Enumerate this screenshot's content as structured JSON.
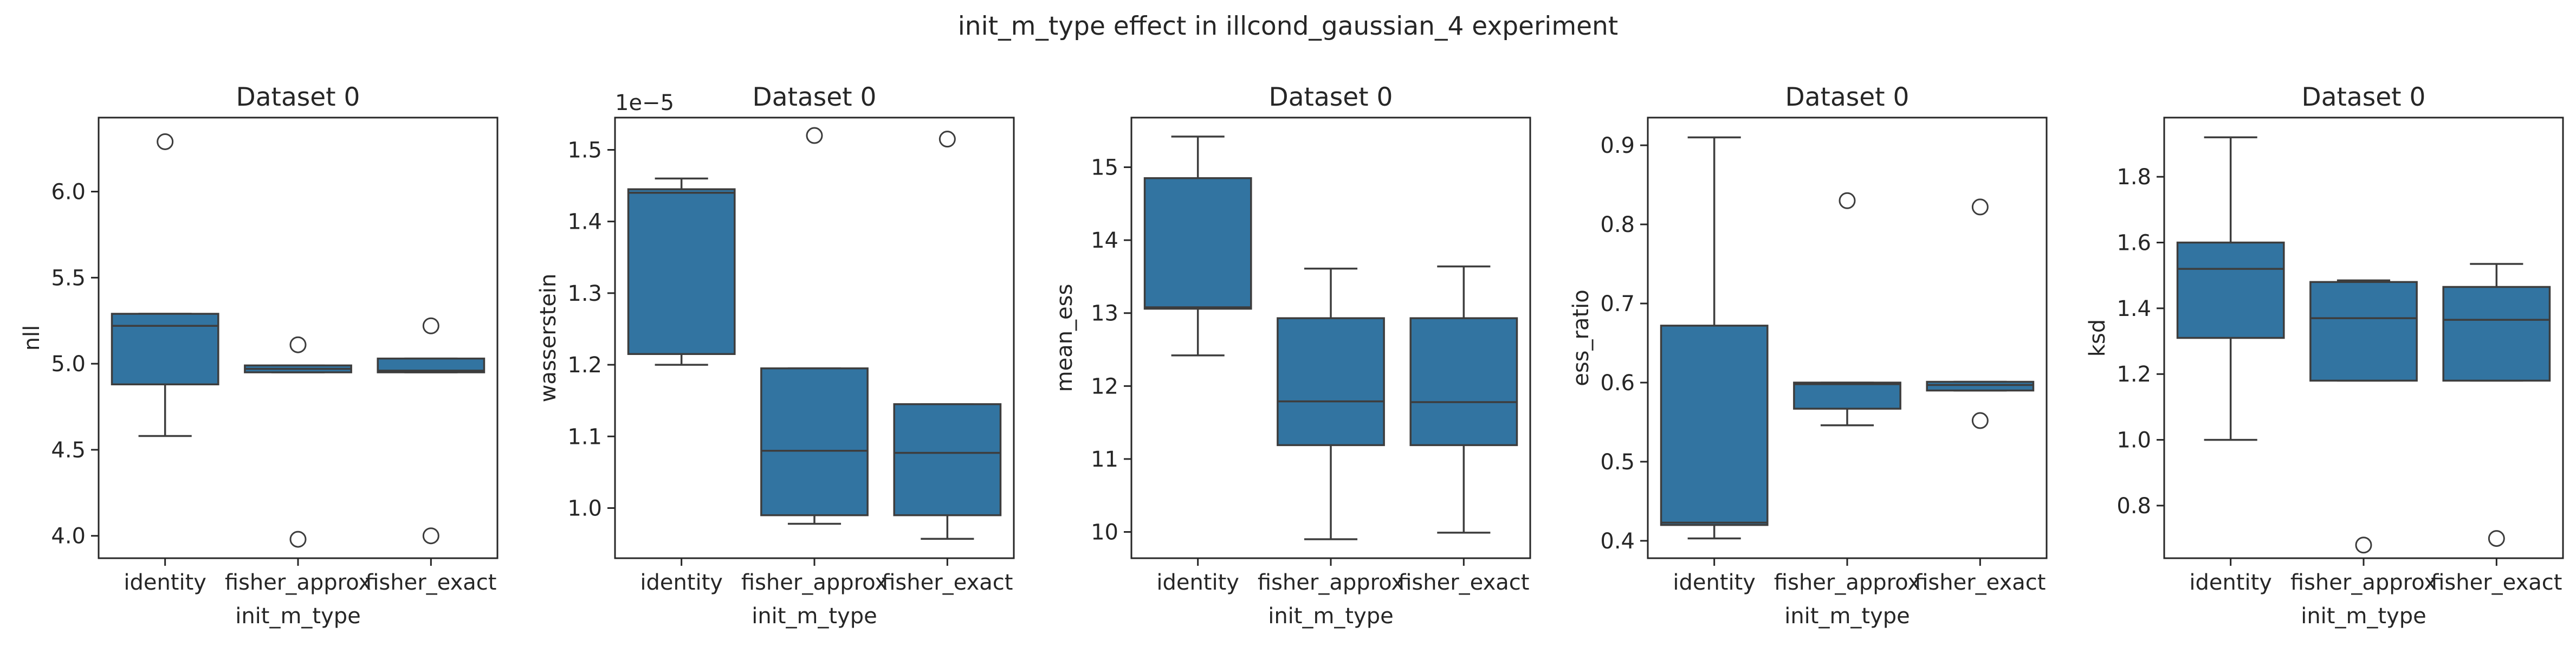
{
  "figure": {
    "suptitle": "init_m_type effect in illcond_gaussian_4 experiment"
  },
  "colors": {
    "box_fill": "#3274a1",
    "line": "#3d3d3d",
    "axes": "#262626",
    "background": "#ffffff"
  },
  "chart_data": [
    {
      "type": "box",
      "title": "Dataset 0",
      "xlabel": "init_m_type",
      "ylabel": "nll",
      "categories": [
        "identity",
        "fisher_approx",
        "fisher_exact"
      ],
      "ylim": [
        3.87,
        6.43
      ],
      "yticks": [
        4.0,
        4.5,
        5.0,
        5.5,
        6.0
      ],
      "ytick_labels": [
        "4.0",
        "4.5",
        "5.0",
        "5.5",
        "6.0"
      ],
      "offset_label": "",
      "boxes": [
        {
          "q1": 4.88,
          "median": 5.22,
          "q3": 5.29,
          "whislo": 4.58,
          "whishi": 5.29,
          "fliers": [
            6.29
          ]
        },
        {
          "q1": 4.95,
          "median": 4.97,
          "q3": 4.99,
          "whislo": 4.95,
          "whishi": 4.99,
          "fliers": [
            5.11,
            3.98
          ]
        },
        {
          "q1": 4.95,
          "median": 4.96,
          "q3": 5.03,
          "whislo": 4.95,
          "whishi": 5.03,
          "fliers": [
            5.22,
            4.0
          ]
        }
      ]
    },
    {
      "type": "box",
      "title": "Dataset 0",
      "xlabel": "init_m_type",
      "ylabel": "wasserstein",
      "categories": [
        "identity",
        "fisher_approx",
        "fisher_exact"
      ],
      "ylim": [
        0.93,
        1.545
      ],
      "yticks": [
        1.0,
        1.1,
        1.2,
        1.3,
        1.4,
        1.5
      ],
      "ytick_labels": [
        "1.0",
        "1.1",
        "1.2",
        "1.3",
        "1.4",
        "1.5"
      ],
      "offset_label": "1e−5",
      "boxes": [
        {
          "q1": 1.215,
          "median": 1.44,
          "q3": 1.445,
          "whislo": 1.2,
          "whishi": 1.46,
          "fliers": []
        },
        {
          "q1": 0.99,
          "median": 1.08,
          "q3": 1.195,
          "whislo": 0.978,
          "whishi": 1.195,
          "fliers": [
            1.52
          ]
        },
        {
          "q1": 0.99,
          "median": 1.077,
          "q3": 1.145,
          "whislo": 0.957,
          "whishi": 1.145,
          "fliers": [
            1.515
          ]
        }
      ]
    },
    {
      "type": "box",
      "title": "Dataset 0",
      "xlabel": "init_m_type",
      "ylabel": "mean_ess",
      "categories": [
        "identity",
        "fisher_approx",
        "fisher_exact"
      ],
      "ylim": [
        9.64,
        15.68
      ],
      "yticks": [
        10,
        11,
        12,
        13,
        14,
        15
      ],
      "ytick_labels": [
        "10",
        "11",
        "12",
        "13",
        "14",
        "15"
      ],
      "offset_label": "",
      "boxes": [
        {
          "q1": 13.06,
          "median": 13.08,
          "q3": 14.85,
          "whislo": 12.42,
          "whishi": 15.42,
          "fliers": []
        },
        {
          "q1": 11.19,
          "median": 11.79,
          "q3": 12.93,
          "whislo": 9.9,
          "whishi": 13.61,
          "fliers": []
        },
        {
          "q1": 11.19,
          "median": 11.78,
          "q3": 12.93,
          "whislo": 9.99,
          "whishi": 13.64,
          "fliers": []
        }
      ]
    },
    {
      "type": "box",
      "title": "Dataset 0",
      "xlabel": "init_m_type",
      "ylabel": "ess_ratio",
      "categories": [
        "identity",
        "fisher_approx",
        "fisher_exact"
      ],
      "ylim": [
        0.378,
        0.935
      ],
      "yticks": [
        0.4,
        0.5,
        0.6,
        0.7,
        0.8,
        0.9
      ],
      "ytick_labels": [
        "0.4",
        "0.5",
        "0.6",
        "0.7",
        "0.8",
        "0.9"
      ],
      "offset_label": "",
      "boxes": [
        {
          "q1": 0.42,
          "median": 0.423,
          "q3": 0.672,
          "whislo": 0.403,
          "whishi": 0.91,
          "fliers": []
        },
        {
          "q1": 0.567,
          "median": 0.598,
          "q3": 0.6,
          "whislo": 0.546,
          "whishi": 0.6,
          "fliers": [
            0.83
          ]
        },
        {
          "q1": 0.59,
          "median": 0.597,
          "q3": 0.601,
          "whislo": 0.59,
          "whishi": 0.601,
          "fliers": [
            0.822,
            0.552
          ]
        }
      ]
    },
    {
      "type": "box",
      "title": "Dataset 0",
      "xlabel": "init_m_type",
      "ylabel": "ksd",
      "categories": [
        "identity",
        "fisher_approx",
        "fisher_exact"
      ],
      "ylim": [
        0.64,
        1.98
      ],
      "yticks": [
        0.8,
        1.0,
        1.2,
        1.4,
        1.6,
        1.8
      ],
      "ytick_labels": [
        "0.8",
        "1.0",
        "1.2",
        "1.4",
        "1.6",
        "1.8"
      ],
      "offset_label": "",
      "boxes": [
        {
          "q1": 1.31,
          "median": 1.52,
          "q3": 1.6,
          "whislo": 1.0,
          "whishi": 1.92,
          "fliers": []
        },
        {
          "q1": 1.18,
          "median": 1.37,
          "q3": 1.48,
          "whislo": 1.18,
          "whishi": 1.485,
          "fliers": [
            0.68
          ]
        },
        {
          "q1": 1.18,
          "median": 1.365,
          "q3": 1.465,
          "whislo": 1.18,
          "whishi": 1.535,
          "fliers": [
            0.7
          ]
        }
      ]
    }
  ]
}
